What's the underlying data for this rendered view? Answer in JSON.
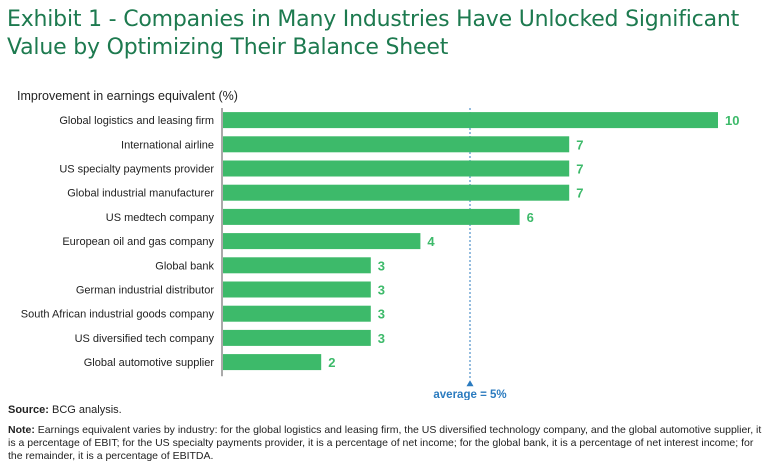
{
  "title": "Exhibit 1 - Companies in Many Industries Have Unlocked Significant Value by Optimizing Their Balance Sheet",
  "colors": {
    "title": "#1d7a4f",
    "bar": "#3dba6a",
    "value_label": "#3dba6a",
    "average": "#2b7bbf",
    "axis": "#555555"
  },
  "chart_data": {
    "type": "bar",
    "orientation": "horizontal",
    "title": "Improvement in earnings equivalent (%)",
    "categories": [
      "Global logistics and leasing firm",
      "International airline",
      "US specialty payments provider",
      "Global industrial manufacturer",
      "US medtech company",
      "European oil and gas company",
      "Global bank",
      "German industrial distributor",
      "South African industrial goods company",
      "US diversified tech company",
      "Global automotive supplier"
    ],
    "values": [
      10,
      7,
      7,
      7,
      6,
      4,
      3,
      3,
      3,
      3,
      2
    ],
    "xlim": [
      0,
      10
    ],
    "average": {
      "value": 5,
      "label": "average = 5%"
    },
    "grid": false
  },
  "footer": {
    "source_label": "Source:",
    "source_text": "BCG analysis.",
    "note_label": "Note:",
    "note_text": "Earnings equivalent varies by industry: for the global logistics and leasing firm, the US diversified technology company, and the global automotive supplier, it is a percentage of EBIT; for the US specialty payments provider, it is a percentage of net income; for the global bank, it is a percentage of net interest income; for the remainder, it is a percentage of EBITDA."
  }
}
